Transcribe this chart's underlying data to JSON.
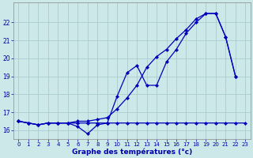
{
  "xlabel": "Graphe des températures (°c)",
  "background_color": "#cce8e8",
  "grid_color": "#aacccc",
  "line_color": "#0000bb",
  "hours": [
    0,
    1,
    2,
    3,
    4,
    5,
    6,
    7,
    8,
    9,
    10,
    11,
    12,
    13,
    14,
    15,
    16,
    17,
    18,
    19,
    20,
    21,
    22,
    23
  ],
  "curve1": [
    16.5,
    16.4,
    16.3,
    16.4,
    16.4,
    16.4,
    16.5,
    16.5,
    16.6,
    16.7,
    17.2,
    17.8,
    18.5,
    19.5,
    20.1,
    20.5,
    21.1,
    21.6,
    22.2,
    22.5,
    22.5,
    21.2,
    19.0,
    null
  ],
  "curve2": [
    16.5,
    16.4,
    16.3,
    16.4,
    16.4,
    16.4,
    16.2,
    15.8,
    16.3,
    16.4,
    17.9,
    19.2,
    19.6,
    18.5,
    18.5,
    19.8,
    20.5,
    21.4,
    22.0,
    22.5,
    22.5,
    21.2,
    19.0,
    null
  ],
  "curve3": [
    16.5,
    16.4,
    16.3,
    16.4,
    16.4,
    16.4,
    16.4,
    16.4,
    16.4,
    16.4,
    16.4,
    16.4,
    16.4,
    16.4,
    16.4,
    16.4,
    16.4,
    16.4,
    16.4,
    16.4,
    16.4,
    16.4,
    16.4,
    16.4
  ],
  "ylim": [
    15.5,
    23.1
  ],
  "yticks": [
    16,
    17,
    18,
    19,
    20,
    21,
    22
  ],
  "xlim": [
    -0.5,
    23.5
  ],
  "xticks": [
    0,
    1,
    2,
    3,
    4,
    5,
    6,
    7,
    8,
    9,
    10,
    11,
    12,
    13,
    14,
    15,
    16,
    17,
    18,
    19,
    20,
    21,
    22,
    23
  ]
}
